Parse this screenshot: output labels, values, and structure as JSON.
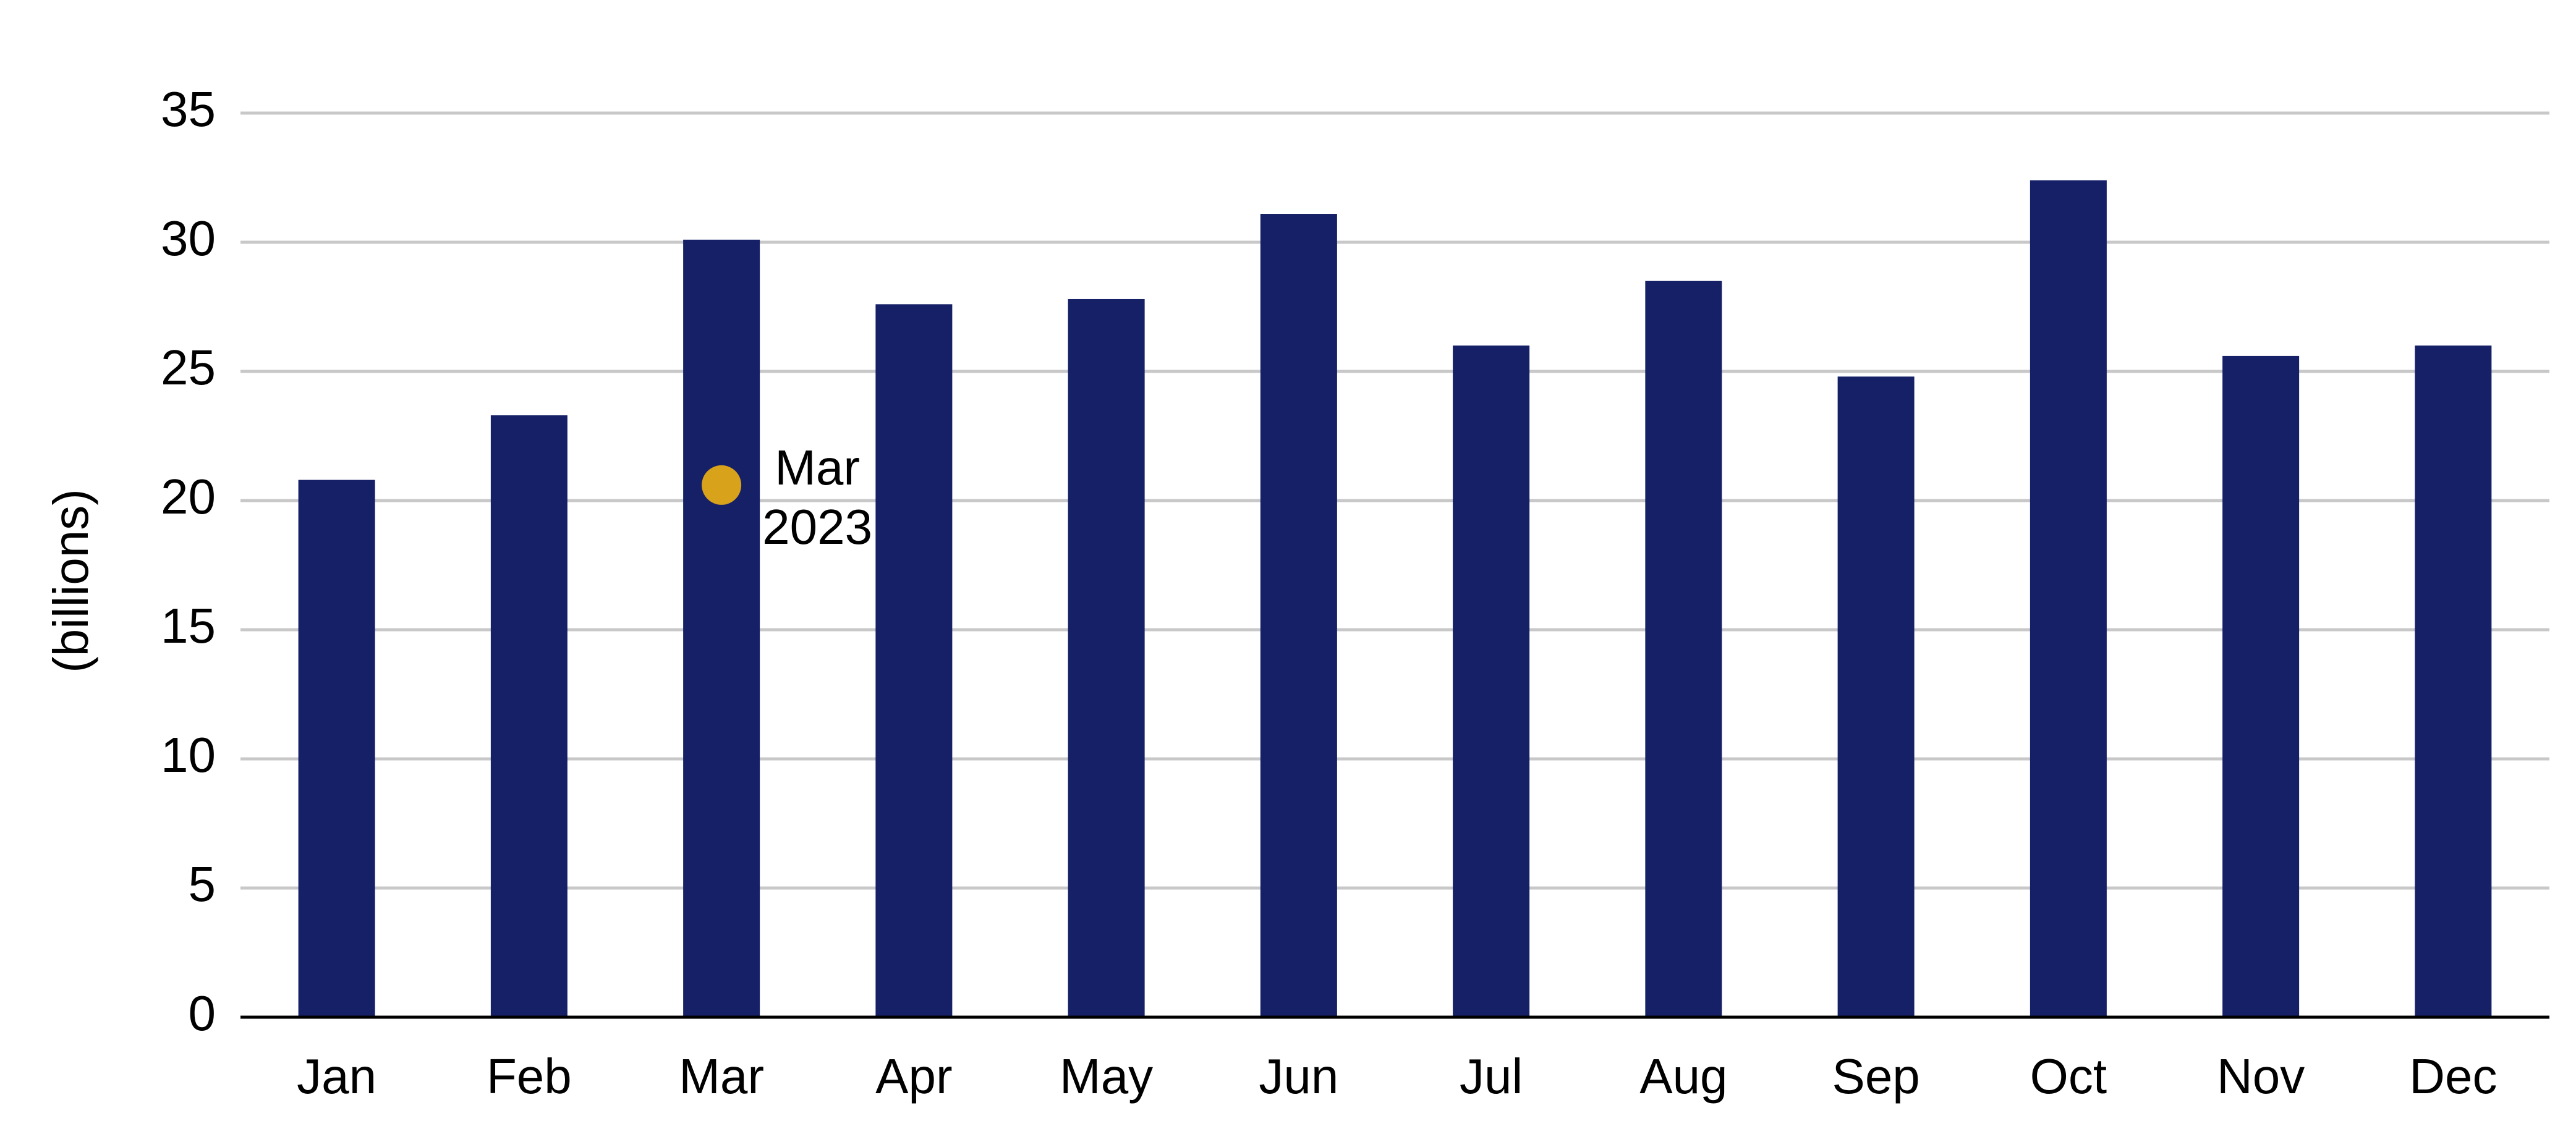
{
  "chart_data": {
    "type": "bar",
    "y_label": "(billions)",
    "categories": [
      "Jan",
      "Feb",
      "Mar",
      "Apr",
      "May",
      "Jun",
      "Jul",
      "Aug",
      "Sep",
      "Oct",
      "Nov",
      "Dec"
    ],
    "values": [
      20.8,
      23.3,
      30.1,
      27.6,
      27.8,
      31.1,
      26.0,
      28.5,
      24.8,
      32.4,
      25.6,
      26.0
    ],
    "color": "#152066",
    "ylim": [
      0,
      35
    ],
    "yticks": [
      0,
      5,
      10,
      15,
      20,
      25,
      30,
      35
    ],
    "grid": true,
    "markers": [
      {
        "x": "Mar",
        "value": 20.6,
        "color": "#d9a21b",
        "label": [
          "Mar",
          "2023"
        ]
      }
    ]
  }
}
